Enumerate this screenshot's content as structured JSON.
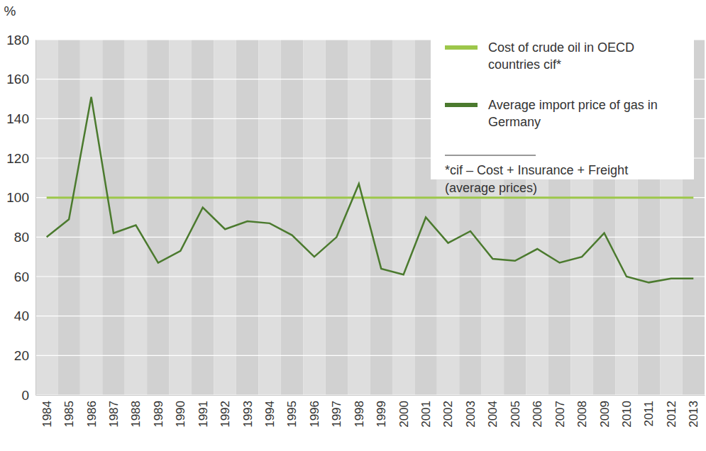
{
  "chart_data": {
    "type": "line",
    "y_label": "%",
    "categories": [
      "1984",
      "1985",
      "1986",
      "1987",
      "1988",
      "1989",
      "1990",
      "1991",
      "1992",
      "1993",
      "1994",
      "1995",
      "1996",
      "1997",
      "1998",
      "1999",
      "2000",
      "2001",
      "2002",
      "2003",
      "2004",
      "2005",
      "2006",
      "2007",
      "2008",
      "2009",
      "2010",
      "2011",
      "2012",
      "2013"
    ],
    "series": [
      {
        "name": "Cost of crude oil in OECD countries cif*",
        "color": "#9dc74a",
        "line_style": "solid",
        "values": [
          100,
          100,
          100,
          100,
          100,
          100,
          100,
          100,
          100,
          100,
          100,
          100,
          100,
          100,
          100,
          100,
          100,
          100,
          100,
          100,
          100,
          100,
          100,
          100,
          100,
          100,
          100,
          100,
          100,
          100
        ]
      },
      {
        "name": "Average import price of gas in Germany",
        "color": "#4b7a2e",
        "line_style": "solid",
        "values": [
          80,
          89,
          151,
          82,
          86,
          67,
          73,
          95,
          84,
          88,
          87,
          81,
          70,
          80,
          107,
          64,
          61,
          90,
          77,
          83,
          69,
          68,
          74,
          67,
          70,
          82,
          60,
          57,
          59,
          59
        ]
      }
    ],
    "annotations": [
      "*cif – Cost + Insurance + Freight",
      "(average prices)"
    ],
    "ylim": [
      0,
      180
    ],
    "yticks": [
      0,
      20,
      40,
      60,
      80,
      100,
      120,
      140,
      160,
      180
    ],
    "grid": true,
    "legend": "top-right"
  }
}
